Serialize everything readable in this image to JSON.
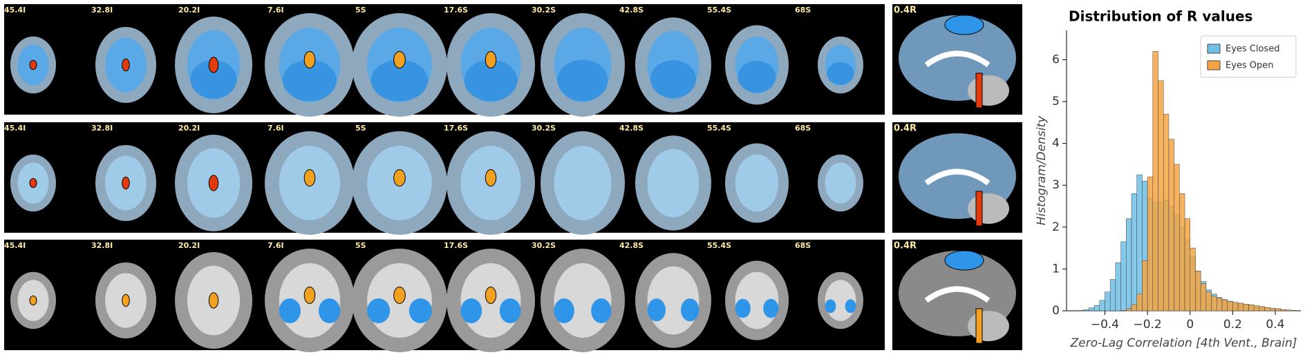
{
  "panels": {
    "slice_labels": [
      "45.4I",
      "32.8I",
      "20.2I",
      "7.6I",
      "5S",
      "17.6S",
      "30.2S",
      "42.8S",
      "55.4S",
      "68S"
    ],
    "sagittal_label": "0.4R"
  },
  "chart_data": {
    "type": "histogram",
    "title": "Distribution of R values",
    "x_label": "Zero-Lag Correlation [4th Vent., Brain]",
    "y_label": "Histogram/Density",
    "bins": [
      -0.55,
      -0.525,
      -0.5,
      -0.475,
      -0.45,
      -0.425,
      -0.4,
      -0.375,
      -0.35,
      -0.325,
      -0.3,
      -0.275,
      -0.25,
      -0.225,
      -0.2,
      -0.175,
      -0.15,
      -0.125,
      -0.1,
      -0.075,
      -0.05,
      -0.025,
      0,
      0.025,
      0.05,
      0.075,
      0.1,
      0.125,
      0.15,
      0.175,
      0.2,
      0.225,
      0.25,
      0.275,
      0.3,
      0.325,
      0.35,
      0.375,
      0.4,
      0.425,
      0.45,
      0.475,
      0.5
    ],
    "series": [
      {
        "name": "Eyes Closed",
        "color": "#6fbfe6",
        "values": [
          0,
          0.01,
          0.03,
          0.07,
          0.13,
          0.25,
          0.45,
          0.75,
          1.15,
          1.65,
          2.2,
          2.8,
          3.25,
          3.1,
          2.7,
          2.6,
          2.6,
          2.65,
          2.5,
          2.3,
          2.0,
          1.7,
          1.3,
          0.95,
          0.7,
          0.5,
          0.4,
          0.32,
          0.27,
          0.23,
          0.2,
          0.18,
          0.16,
          0.14,
          0.12,
          0.1,
          0.08,
          0.06,
          0.05,
          0.03,
          0.02,
          0.01
        ]
      },
      {
        "name": "Eyes Open",
        "color": "#f5a442",
        "values": [
          0,
          0,
          0,
          0,
          0,
          0,
          0,
          0,
          0,
          0.01,
          0.05,
          0.15,
          0.4,
          1.2,
          3.2,
          6.2,
          5.5,
          4.7,
          4.1,
          3.5,
          2.8,
          2.2,
          1.5,
          0.95,
          0.65,
          0.45,
          0.35,
          0.3,
          0.26,
          0.22,
          0.2,
          0.18,
          0.16,
          0.14,
          0.12,
          0.1,
          0.08,
          0.06,
          0.05,
          0.03,
          0.02,
          0.01
        ]
      }
    ],
    "xlim": [
      -0.58,
      0.52
    ],
    "ylim": [
      0,
      6.7
    ],
    "xticks": [
      {
        "value": -0.4,
        "label": "−0.4"
      },
      {
        "value": -0.2,
        "label": "−0.2"
      },
      0,
      0.2,
      0.4
    ],
    "yticks": [
      0,
      1,
      2,
      3,
      4,
      5,
      6
    ],
    "legend": "upper right"
  }
}
